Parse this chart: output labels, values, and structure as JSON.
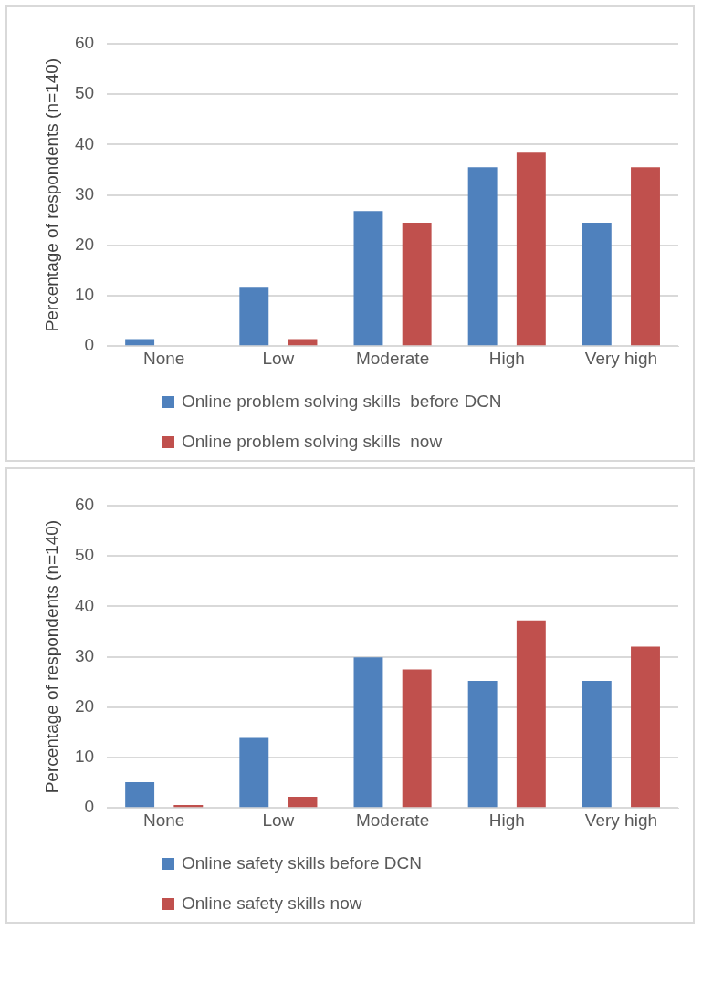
{
  "chart_data": [
    {
      "type": "bar",
      "ylabel": "Percentage of respondents (n=140)",
      "categories": [
        "None",
        "Low",
        "Moderate",
        "High",
        "Very high"
      ],
      "series": [
        {
          "name": "Online problem solving skills  before DCN",
          "color": "#4f81bd",
          "values": [
            1.4,
            11.6,
            26.8,
            35.5,
            24.5
          ]
        },
        {
          "name": "Online problem solving skills  now",
          "color": "#c0504d",
          "values": [
            null,
            1.4,
            24.5,
            38.4,
            35.5
          ]
        }
      ],
      "ylim": [
        0,
        60
      ],
      "yticks": [
        0,
        10,
        20,
        30,
        40,
        50,
        60
      ],
      "grid": "y",
      "legend": "bottom"
    },
    {
      "type": "bar",
      "ylabel": "Percentage of respondents (n=140)",
      "categories": [
        "None",
        "Low",
        "Moderate",
        "High",
        "Very high"
      ],
      "series": [
        {
          "name": "Online safety skills before DCN",
          "color": "#4f81bd",
          "values": [
            5.1,
            13.9,
            29.9,
            25.2,
            25.2
          ]
        },
        {
          "name": "Online safety skills now",
          "color": "#c0504d",
          "values": [
            0.6,
            2.2,
            27.5,
            37.2,
            32.0
          ]
        }
      ],
      "ylim": [
        0,
        60
      ],
      "yticks": [
        0,
        10,
        20,
        30,
        40,
        50,
        60
      ],
      "grid": "y",
      "legend": "bottom"
    }
  ]
}
